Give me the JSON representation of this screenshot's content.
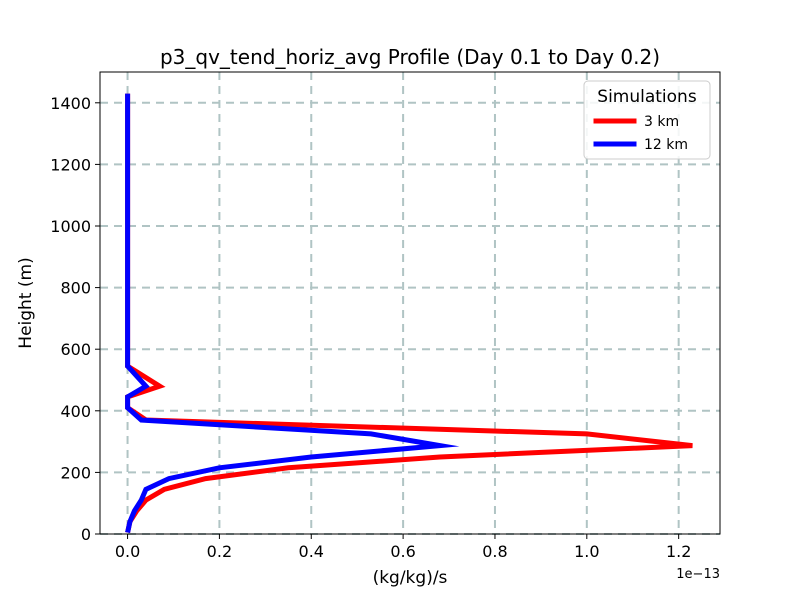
{
  "chart_data": {
    "type": "line",
    "title": "p3_qv_tend_horiz_avg Profile (Day 0.1 to Day 0.2)",
    "xlabel": "(kg/kg)/s",
    "ylabel": "Height (m)",
    "x_offset_text": "1e−13",
    "x_scale_factor": 1e-13,
    "xlim": [
      -0.06,
      1.29
    ],
    "ylim": [
      0,
      1500
    ],
    "xticks": [
      0.0,
      0.2,
      0.4,
      0.6,
      0.8,
      1.0,
      1.2
    ],
    "xtick_labels": [
      "0.0",
      "0.2",
      "0.4",
      "0.6",
      "0.8",
      "1.0",
      "1.2"
    ],
    "yticks": [
      0,
      200,
      400,
      600,
      800,
      1000,
      1200,
      1400
    ],
    "ytick_labels": [
      "0",
      "200",
      "400",
      "600",
      "800",
      "1000",
      "1200",
      "1400"
    ],
    "grid": true,
    "grid_color": "#b0c4c4",
    "legend": {
      "title": "Simulations",
      "placement": "top-right"
    },
    "series": [
      {
        "name": "3 km",
        "color": "#ff0000",
        "points": [
          [
            0.0,
            5
          ],
          [
            0.005,
            40
          ],
          [
            0.02,
            75
          ],
          [
            0.04,
            110
          ],
          [
            0.08,
            145
          ],
          [
            0.17,
            180
          ],
          [
            0.35,
            215
          ],
          [
            0.68,
            250
          ],
          [
            1.23,
            287
          ],
          [
            1.0,
            325
          ],
          [
            0.04,
            370
          ],
          [
            0.0,
            410
          ],
          [
            0.0,
            445
          ],
          [
            0.07,
            480
          ],
          [
            0.0,
            545
          ],
          [
            0.0,
            600
          ],
          [
            0.0,
            800
          ],
          [
            0.0,
            1000
          ],
          [
            0.0,
            1200
          ],
          [
            0.0,
            1430
          ]
        ]
      },
      {
        "name": "12 km",
        "color": "#0000ff",
        "points": [
          [
            0.0,
            5
          ],
          [
            0.005,
            40
          ],
          [
            0.015,
            75
          ],
          [
            0.03,
            110
          ],
          [
            0.04,
            145
          ],
          [
            0.09,
            180
          ],
          [
            0.2,
            215
          ],
          [
            0.4,
            250
          ],
          [
            0.68,
            287
          ],
          [
            0.53,
            325
          ],
          [
            0.03,
            370
          ],
          [
            0.0,
            410
          ],
          [
            0.0,
            445
          ],
          [
            0.04,
            480
          ],
          [
            0.0,
            545
          ],
          [
            0.0,
            600
          ],
          [
            0.0,
            800
          ],
          [
            0.0,
            1000
          ],
          [
            0.0,
            1200
          ],
          [
            0.0,
            1430
          ]
        ]
      }
    ]
  }
}
